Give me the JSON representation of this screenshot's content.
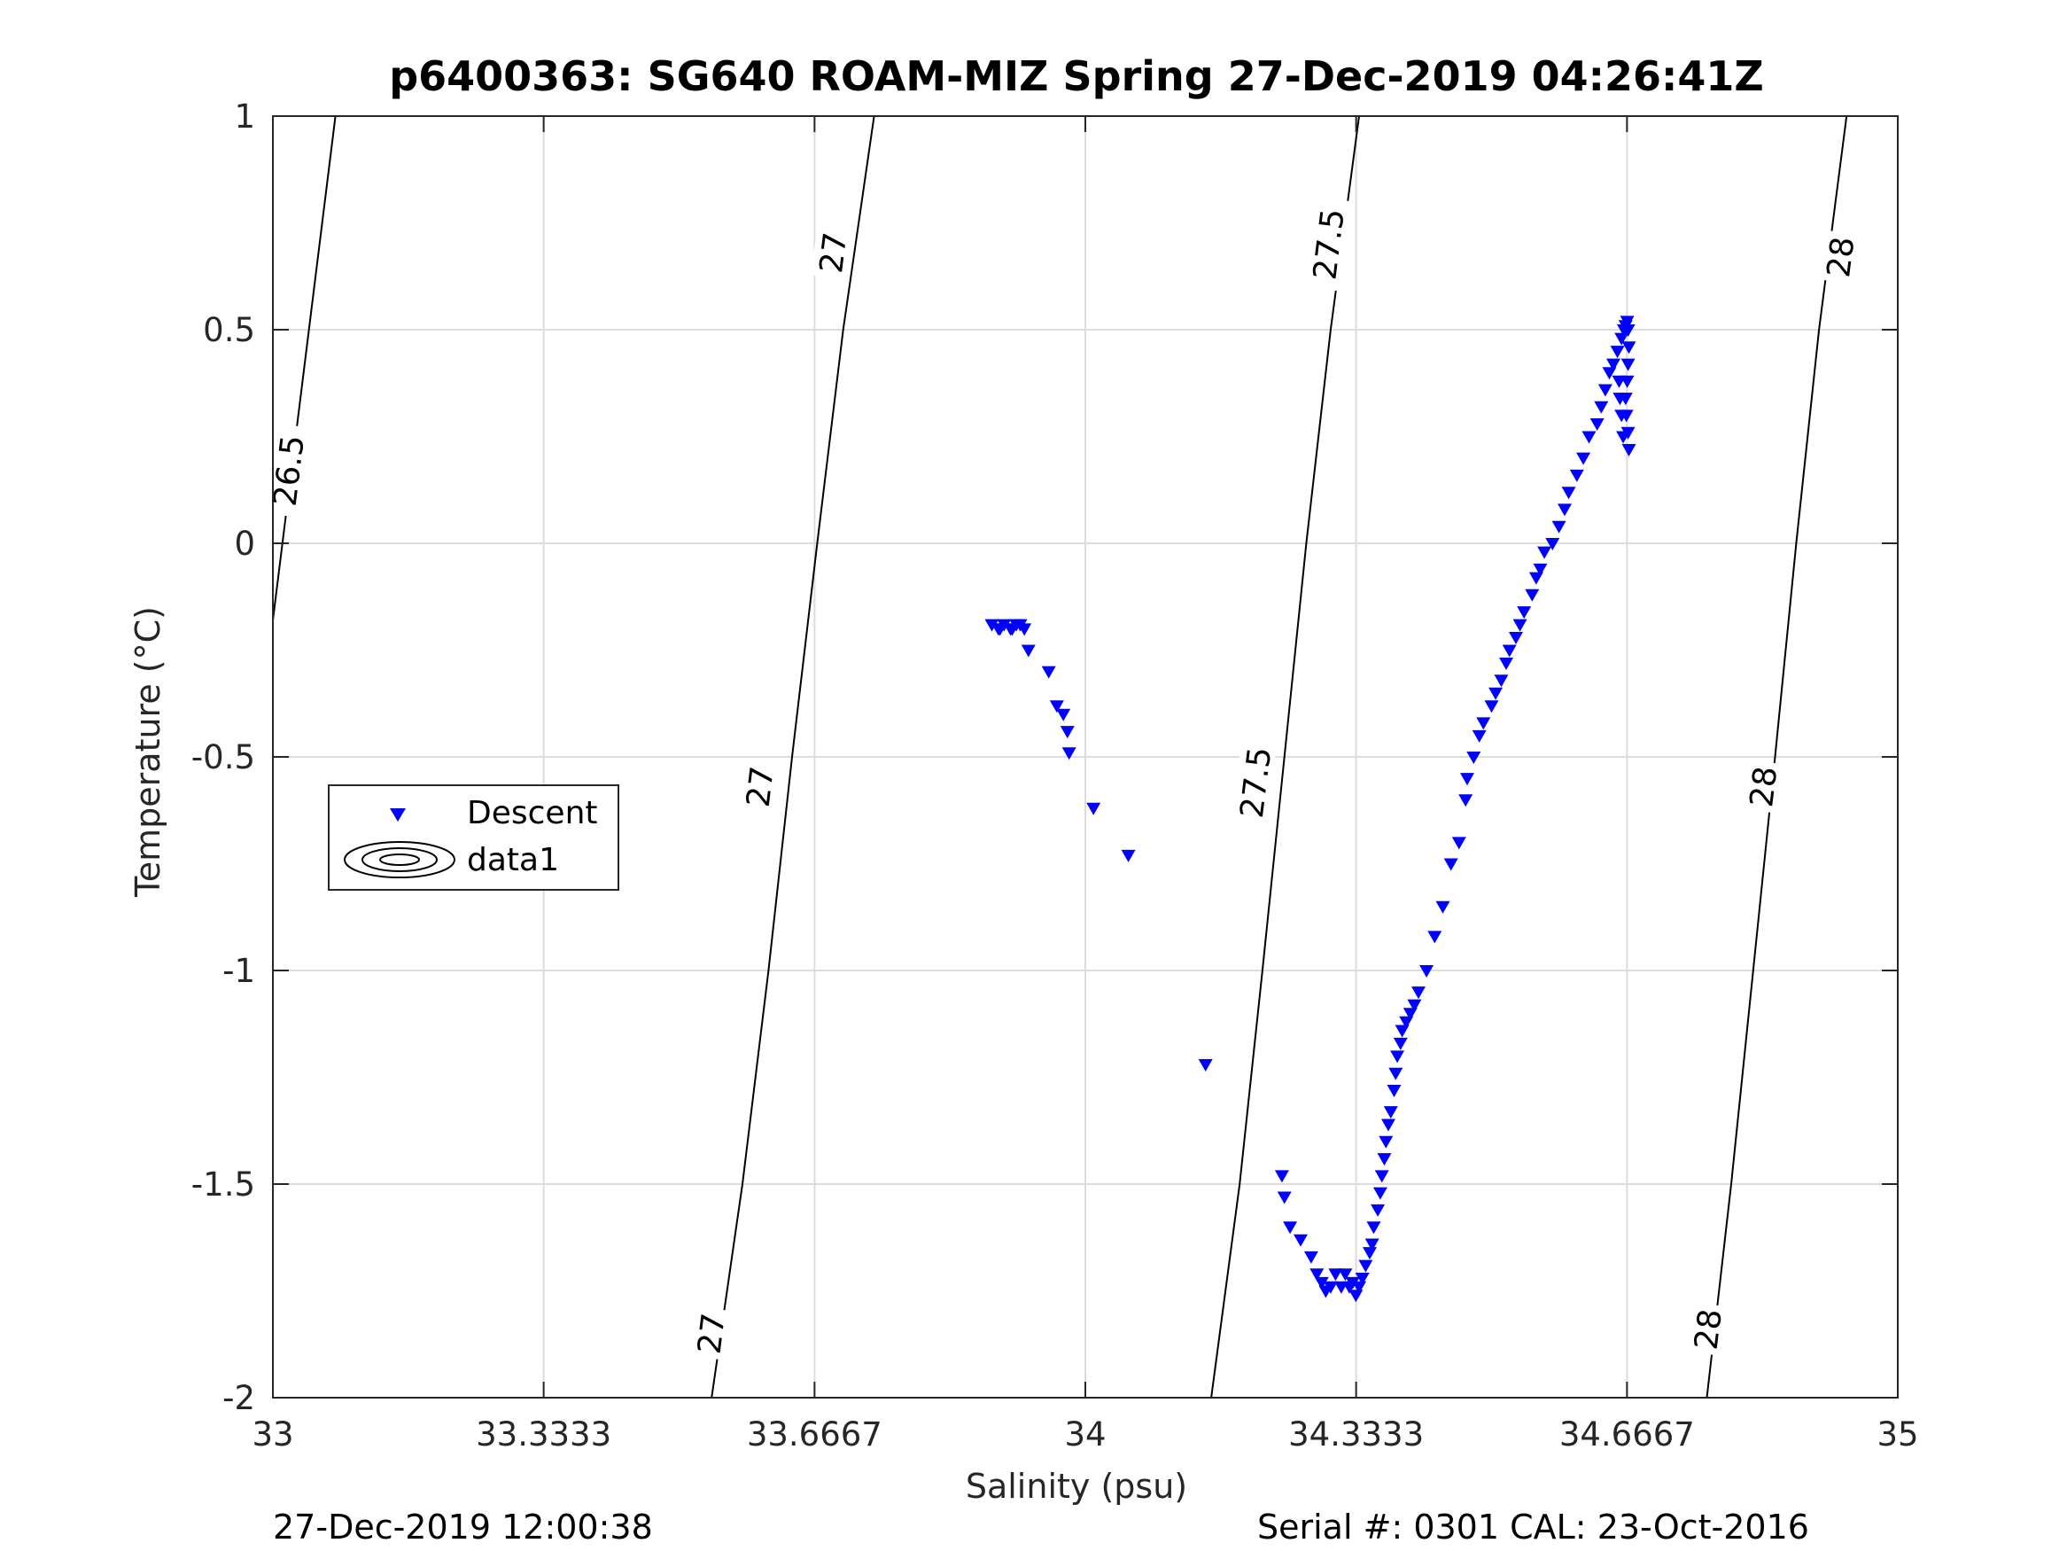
{
  "chart_data": {
    "type": "scatter",
    "title": "p6400363: SG640 ROAM-MIZ Spring 27-Dec-2019 04:26:41Z",
    "xlabel": "Salinity (psu)",
    "ylabel": "Temperature (°C)",
    "xlim": [
      33,
      35
    ],
    "ylim": [
      -2,
      1
    ],
    "xticks": [
      33,
      33.3333,
      33.6667,
      34,
      34.3333,
      34.6667,
      35
    ],
    "xtick_labels": [
      "33",
      "33.3333",
      "33.6667",
      "34",
      "34.3333",
      "34.6667",
      "35"
    ],
    "yticks": [
      -2,
      -1.5,
      -1,
      -0.5,
      0,
      0.5,
      1
    ],
    "ytick_labels": [
      "-2",
      "-1.5",
      "-1",
      "-0.5",
      "0",
      "0.5",
      "1"
    ],
    "grid": true,
    "legend": {
      "placement": "middle-left",
      "entries": [
        {
          "label": "Descent",
          "marker": "down-triangle",
          "color": "#0000ff"
        },
        {
          "label": "data1",
          "marker": "contour",
          "color": "#000000"
        }
      ]
    },
    "series": [
      {
        "name": "Descent",
        "color": "#0000ff",
        "marker": "down-triangle",
        "x": [
          33.885,
          33.893,
          33.9,
          33.908,
          33.915,
          33.92,
          33.925,
          33.91,
          33.895,
          33.93,
          33.955,
          33.965,
          33.973,
          33.978,
          33.98,
          34.01,
          34.053,
          34.148,
          34.242,
          34.245,
          34.252,
          34.265,
          34.278,
          34.285,
          34.291,
          34.296,
          34.302,
          34.308,
          34.315,
          34.32,
          34.325,
          34.329,
          34.333,
          34.337,
          34.341,
          34.345,
          34.35,
          34.353,
          34.355,
          34.36,
          34.363,
          34.365,
          34.368,
          34.37,
          34.373,
          34.376,
          34.38,
          34.382,
          34.384,
          34.388,
          34.39,
          34.395,
          34.4,
          34.405,
          34.41,
          34.42,
          34.43,
          34.44,
          34.45,
          34.46,
          34.468,
          34.47,
          34.478,
          34.485,
          34.49,
          34.5,
          34.505,
          34.512,
          34.518,
          34.522,
          34.53,
          34.535,
          34.54,
          34.55,
          34.555,
          34.56,
          34.565,
          34.575,
          34.583,
          34.59,
          34.595,
          34.605,
          34.613,
          34.62,
          34.63,
          34.635,
          34.64,
          34.645,
          34.65,
          34.655,
          34.66,
          34.663,
          34.665,
          34.667,
          34.668,
          34.669,
          34.668,
          34.667,
          34.665,
          34.666,
          34.668,
          34.669,
          34.662,
          34.66,
          34.658,
          34.657
        ],
        "y": [
          -0.19,
          -0.2,
          -0.19,
          -0.2,
          -0.19,
          -0.19,
          -0.2,
          -0.2,
          -0.2,
          -0.25,
          -0.3,
          -0.38,
          -0.4,
          -0.44,
          -0.49,
          -0.62,
          -0.73,
          -1.22,
          -1.48,
          -1.53,
          -1.6,
          -1.63,
          -1.67,
          -1.71,
          -1.73,
          -1.75,
          -1.74,
          -1.71,
          -1.74,
          -1.71,
          -1.74,
          -1.73,
          -1.76,
          -1.74,
          -1.72,
          -1.69,
          -1.66,
          -1.64,
          -1.6,
          -1.56,
          -1.52,
          -1.48,
          -1.44,
          -1.4,
          -1.36,
          -1.33,
          -1.28,
          -1.24,
          -1.2,
          -1.17,
          -1.14,
          -1.12,
          -1.1,
          -1.08,
          -1.05,
          -1.0,
          -0.92,
          -0.85,
          -0.75,
          -0.7,
          -0.6,
          -0.55,
          -0.5,
          -0.45,
          -0.42,
          -0.38,
          -0.35,
          -0.32,
          -0.28,
          -0.25,
          -0.22,
          -0.19,
          -0.16,
          -0.12,
          -0.08,
          -0.06,
          -0.02,
          0.0,
          0.04,
          0.08,
          0.12,
          0.16,
          0.2,
          0.25,
          0.28,
          0.32,
          0.36,
          0.4,
          0.42,
          0.45,
          0.48,
          0.5,
          0.51,
          0.52,
          0.5,
          0.46,
          0.42,
          0.38,
          0.34,
          0.3,
          0.26,
          0.22,
          0.25,
          0.3,
          0.34,
          0.38
        ]
      }
    ],
    "isopycnals": [
      {
        "label": "26.5",
        "points": [
          [
            33.0,
            -0.18
          ],
          [
            33.077,
            1.0
          ]
        ]
      },
      {
        "label": "27",
        "points": [
          [
            33.54,
            -2.0
          ],
          [
            33.578,
            -1.5
          ],
          [
            33.61,
            -1.0
          ],
          [
            33.639,
            -0.5
          ],
          [
            33.67,
            0.0
          ],
          [
            33.702,
            0.5
          ],
          [
            33.74,
            1.0
          ]
        ]
      },
      {
        "label": "27.5",
        "points": [
          [
            34.155,
            -2.0
          ],
          [
            34.19,
            -1.5
          ],
          [
            34.218,
            -1.0
          ],
          [
            34.245,
            -0.5
          ],
          [
            34.272,
            0.0
          ],
          [
            34.302,
            0.5
          ],
          [
            34.337,
            1.0
          ]
        ]
      },
      {
        "label": "28",
        "points": [
          [
            34.765,
            -2.0
          ],
          [
            34.795,
            -1.5
          ],
          [
            34.822,
            -1.0
          ],
          [
            34.849,
            -0.5
          ],
          [
            34.875,
            0.0
          ],
          [
            34.903,
            0.5
          ],
          [
            34.937,
            1.0
          ]
        ]
      }
    ],
    "contour_labels": [
      {
        "text": "26.5",
        "x": 33.02,
        "y": 0.17
      },
      {
        "text": "27",
        "x": 33.69,
        "y": 0.68
      },
      {
        "text": "27",
        "x": 33.6,
        "y": -0.57
      },
      {
        "text": "27",
        "x": 33.54,
        "y": -1.85
      },
      {
        "text": "27.5",
        "x": 34.3,
        "y": 0.7
      },
      {
        "text": "27.5",
        "x": 34.21,
        "y": -0.56
      },
      {
        "text": "28",
        "x": 34.93,
        "y": 0.67
      },
      {
        "text": "28",
        "x": 34.835,
        "y": -0.57
      },
      {
        "text": "28",
        "x": 34.767,
        "y": -1.84
      }
    ]
  },
  "footer": {
    "left": "27-Dec-2019 12:00:38",
    "right": "Serial #: 0301  CAL: 23-Oct-2016"
  }
}
